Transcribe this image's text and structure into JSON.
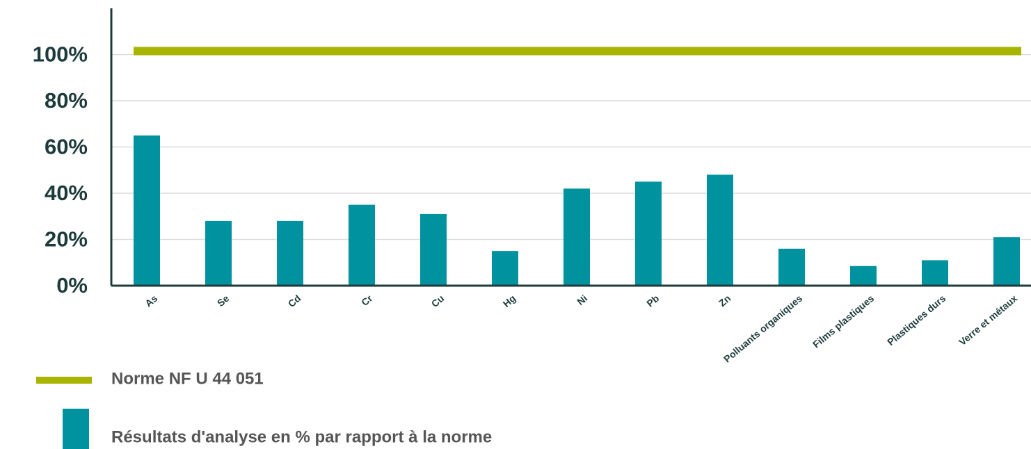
{
  "chart_data": {
    "type": "bar",
    "categories": [
      "As",
      "Se",
      "Cd",
      "Cr",
      "Cu",
      "Hg",
      "Ni",
      "Pb",
      "Zn",
      "Polluants organiques",
      "Films plastiques",
      "Plastiques durs",
      "Verre et métaux"
    ],
    "series": [
      {
        "name": "Résultats d'analyse en % par rapport à la norme",
        "color": "#00929f",
        "values": [
          65,
          28,
          28,
          35,
          31,
          15,
          42,
          45,
          48,
          16,
          8.5,
          11,
          21
        ]
      }
    ],
    "reference_line": {
      "name": "Norme NF U 44 051",
      "value": 100,
      "color": "#a8b400"
    },
    "ylim": [
      0,
      120
    ],
    "yticks": [
      {
        "value": 0,
        "label": "0%"
      },
      {
        "value": 20,
        "label": "20%"
      },
      {
        "value": 40,
        "label": "40%"
      },
      {
        "value": 60,
        "label": "60%"
      },
      {
        "value": 80,
        "label": "80%"
      },
      {
        "value": 100,
        "label": "100%"
      }
    ],
    "grid": true
  }
}
